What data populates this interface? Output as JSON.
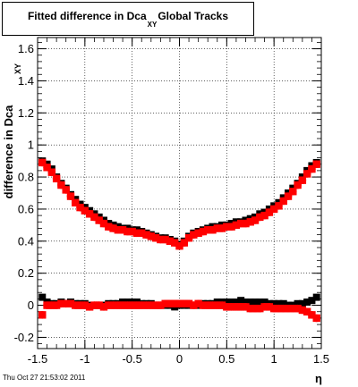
{
  "title": {
    "main": "Fitted difference in Dca",
    "sub": "XY",
    "rest": "Global Tracks"
  },
  "timestamp": "Thu Oct 27 21:53:02 2011",
  "chart_data": {
    "type": "scatter",
    "xlabel": "η",
    "ylabel": "difference in Dca",
    "ylabel_sub": "XY",
    "xlim": [
      -1.5,
      1.5
    ],
    "ylim": [
      -0.27,
      1.67
    ],
    "xticks": [
      "-1.5",
      "-1",
      "-0.5",
      "0",
      "0.5",
      "1",
      "1.5"
    ],
    "yticks": [
      "-0.2",
      "0",
      "0.2",
      "0.4",
      "0.6",
      "0.8",
      "1",
      "1.2",
      "1.4",
      "1.6"
    ],
    "grid": true,
    "x": [
      -1.45,
      -1.4,
      -1.35,
      -1.3,
      -1.25,
      -1.2,
      -1.15,
      -1.1,
      -1.05,
      -1.0,
      -0.95,
      -0.9,
      -0.85,
      -0.8,
      -0.75,
      -0.7,
      -0.65,
      -0.6,
      -0.55,
      -0.5,
      -0.45,
      -0.4,
      -0.35,
      -0.3,
      -0.25,
      -0.2,
      -0.15,
      -0.1,
      -0.05,
      0.0,
      0.05,
      0.1,
      0.15,
      0.2,
      0.25,
      0.3,
      0.35,
      0.4,
      0.45,
      0.5,
      0.55,
      0.6,
      0.65,
      0.7,
      0.75,
      0.8,
      0.85,
      0.9,
      0.95,
      1.0,
      1.05,
      1.1,
      1.15,
      1.2,
      1.25,
      1.3,
      1.35,
      1.4,
      1.45
    ],
    "series": [
      {
        "color": "#000000",
        "values": [
          0.9,
          0.88,
          0.85,
          0.8,
          0.76,
          0.73,
          0.69,
          0.66,
          0.63,
          0.61,
          0.59,
          0.57,
          0.55,
          0.53,
          0.51,
          0.5,
          0.49,
          0.48,
          0.48,
          0.47,
          0.47,
          0.46,
          0.45,
          0.44,
          0.43,
          0.42,
          0.42,
          0.41,
          0.4,
          0.38,
          0.4,
          0.43,
          0.45,
          0.46,
          0.47,
          0.48,
          0.49,
          0.49,
          0.5,
          0.5,
          0.51,
          0.52,
          0.52,
          0.53,
          0.54,
          0.55,
          0.57,
          0.58,
          0.6,
          0.62,
          0.64,
          0.67,
          0.7,
          0.73,
          0.76,
          0.8,
          0.84,
          0.87,
          0.89
        ]
      },
      {
        "color": "#ff0000",
        "values": [
          0.89,
          0.86,
          0.83,
          0.79,
          0.75,
          0.72,
          0.68,
          0.64,
          0.61,
          0.59,
          0.57,
          0.55,
          0.53,
          0.51,
          0.49,
          0.48,
          0.47,
          0.47,
          0.46,
          0.46,
          0.45,
          0.45,
          0.44,
          0.43,
          0.42,
          0.41,
          0.41,
          0.4,
          0.39,
          0.37,
          0.39,
          0.42,
          0.44,
          0.45,
          0.46,
          0.47,
          0.47,
          0.48,
          0.48,
          0.49,
          0.49,
          0.5,
          0.51,
          0.51,
          0.52,
          0.53,
          0.55,
          0.56,
          0.58,
          0.6,
          0.62,
          0.65,
          0.68,
          0.71,
          0.75,
          0.78,
          0.82,
          0.85,
          0.88
        ]
      },
      {
        "color": "#000000",
        "values": [
          0.05,
          0.02,
          0.01,
          0.01,
          0.02,
          0.01,
          0.02,
          0.01,
          0.01,
          0.01,
          0.0,
          0.0,
          0.0,
          0.0,
          0.01,
          0.01,
          0.01,
          0.02,
          0.02,
          0.02,
          0.02,
          0.01,
          0.01,
          0.01,
          0.0,
          0.0,
          0.0,
          0.0,
          -0.01,
          0.0,
          0.0,
          0.0,
          0.0,
          0.0,
          0.01,
          0.01,
          0.01,
          0.02,
          0.02,
          0.02,
          0.02,
          0.02,
          0.03,
          0.02,
          0.02,
          0.02,
          0.02,
          0.02,
          0.01,
          0.01,
          0.01,
          0.01,
          0.0,
          0.0,
          0.01,
          0.01,
          0.02,
          0.03,
          0.05
        ]
      },
      {
        "color": "#ff0000",
        "values": [
          -0.06,
          0.0,
          0.0,
          0.0,
          0.01,
          0.01,
          0.01,
          0.0,
          0.0,
          0.0,
          -0.01,
          0.0,
          0.0,
          -0.01,
          0.0,
          0.0,
          0.0,
          0.0,
          0.0,
          0.0,
          0.0,
          0.0,
          0.0,
          0.0,
          0.0,
          0.0,
          0.01,
          0.01,
          0.01,
          0.01,
          0.01,
          0.01,
          0.0,
          0.01,
          0.0,
          0.0,
          0.0,
          0.0,
          0.0,
          -0.01,
          -0.01,
          -0.01,
          -0.01,
          -0.01,
          -0.02,
          -0.02,
          -0.02,
          -0.01,
          -0.01,
          -0.02,
          -0.02,
          -0.02,
          -0.02,
          -0.02,
          -0.02,
          -0.03,
          -0.04,
          -0.06,
          -0.08
        ]
      }
    ]
  }
}
